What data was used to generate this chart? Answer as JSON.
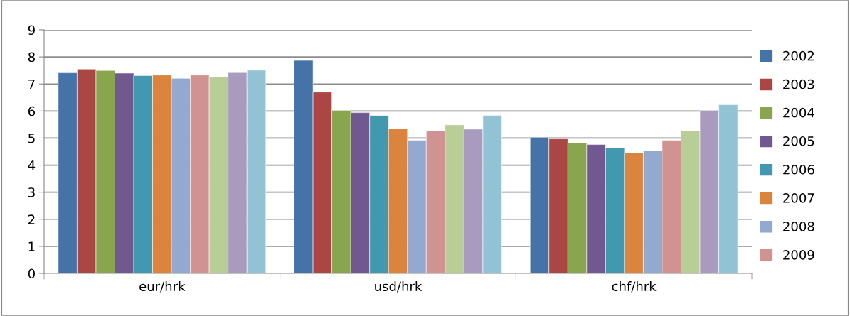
{
  "chart_data": {
    "type": "bar",
    "categories": [
      "eur/hrk",
      "usd/hrk",
      "chf/hrk"
    ],
    "series": [
      {
        "name": "2002",
        "color": "#4572a7",
        "values": [
          7.41,
          7.87,
          5.03
        ]
      },
      {
        "name": "2003",
        "color": "#aa4643",
        "values": [
          7.55,
          6.7,
          4.97
        ]
      },
      {
        "name": "2004",
        "color": "#89a54e",
        "values": [
          7.5,
          6.02,
          4.83
        ]
      },
      {
        "name": "2005",
        "color": "#71588f",
        "values": [
          7.4,
          5.94,
          4.76
        ]
      },
      {
        "name": "2006",
        "color": "#4198af",
        "values": [
          7.31,
          5.83,
          4.64
        ]
      },
      {
        "name": "2007",
        "color": "#db843d",
        "values": [
          7.33,
          5.35,
          4.45
        ]
      },
      {
        "name": "2008",
        "color": "#93a9cf",
        "values": [
          7.21,
          4.92,
          4.54
        ]
      },
      {
        "name": "2009",
        "color": "#d19392",
        "values": [
          7.33,
          5.27,
          4.92
        ]
      },
      {
        "color": "#b9cd96",
        "values": [
          7.27,
          5.49,
          5.27
        ]
      },
      {
        "color": "#a99bbd",
        "values": [
          7.42,
          5.33,
          6.02
        ]
      },
      {
        "color": "#92c3d5",
        "values": [
          7.51,
          5.84,
          6.23
        ]
      }
    ],
    "ylim": [
      0,
      9
    ],
    "yticks": [
      0,
      1,
      2,
      3,
      4,
      5,
      6,
      7,
      8,
      9
    ],
    "grid": "y",
    "legend": "right"
  }
}
